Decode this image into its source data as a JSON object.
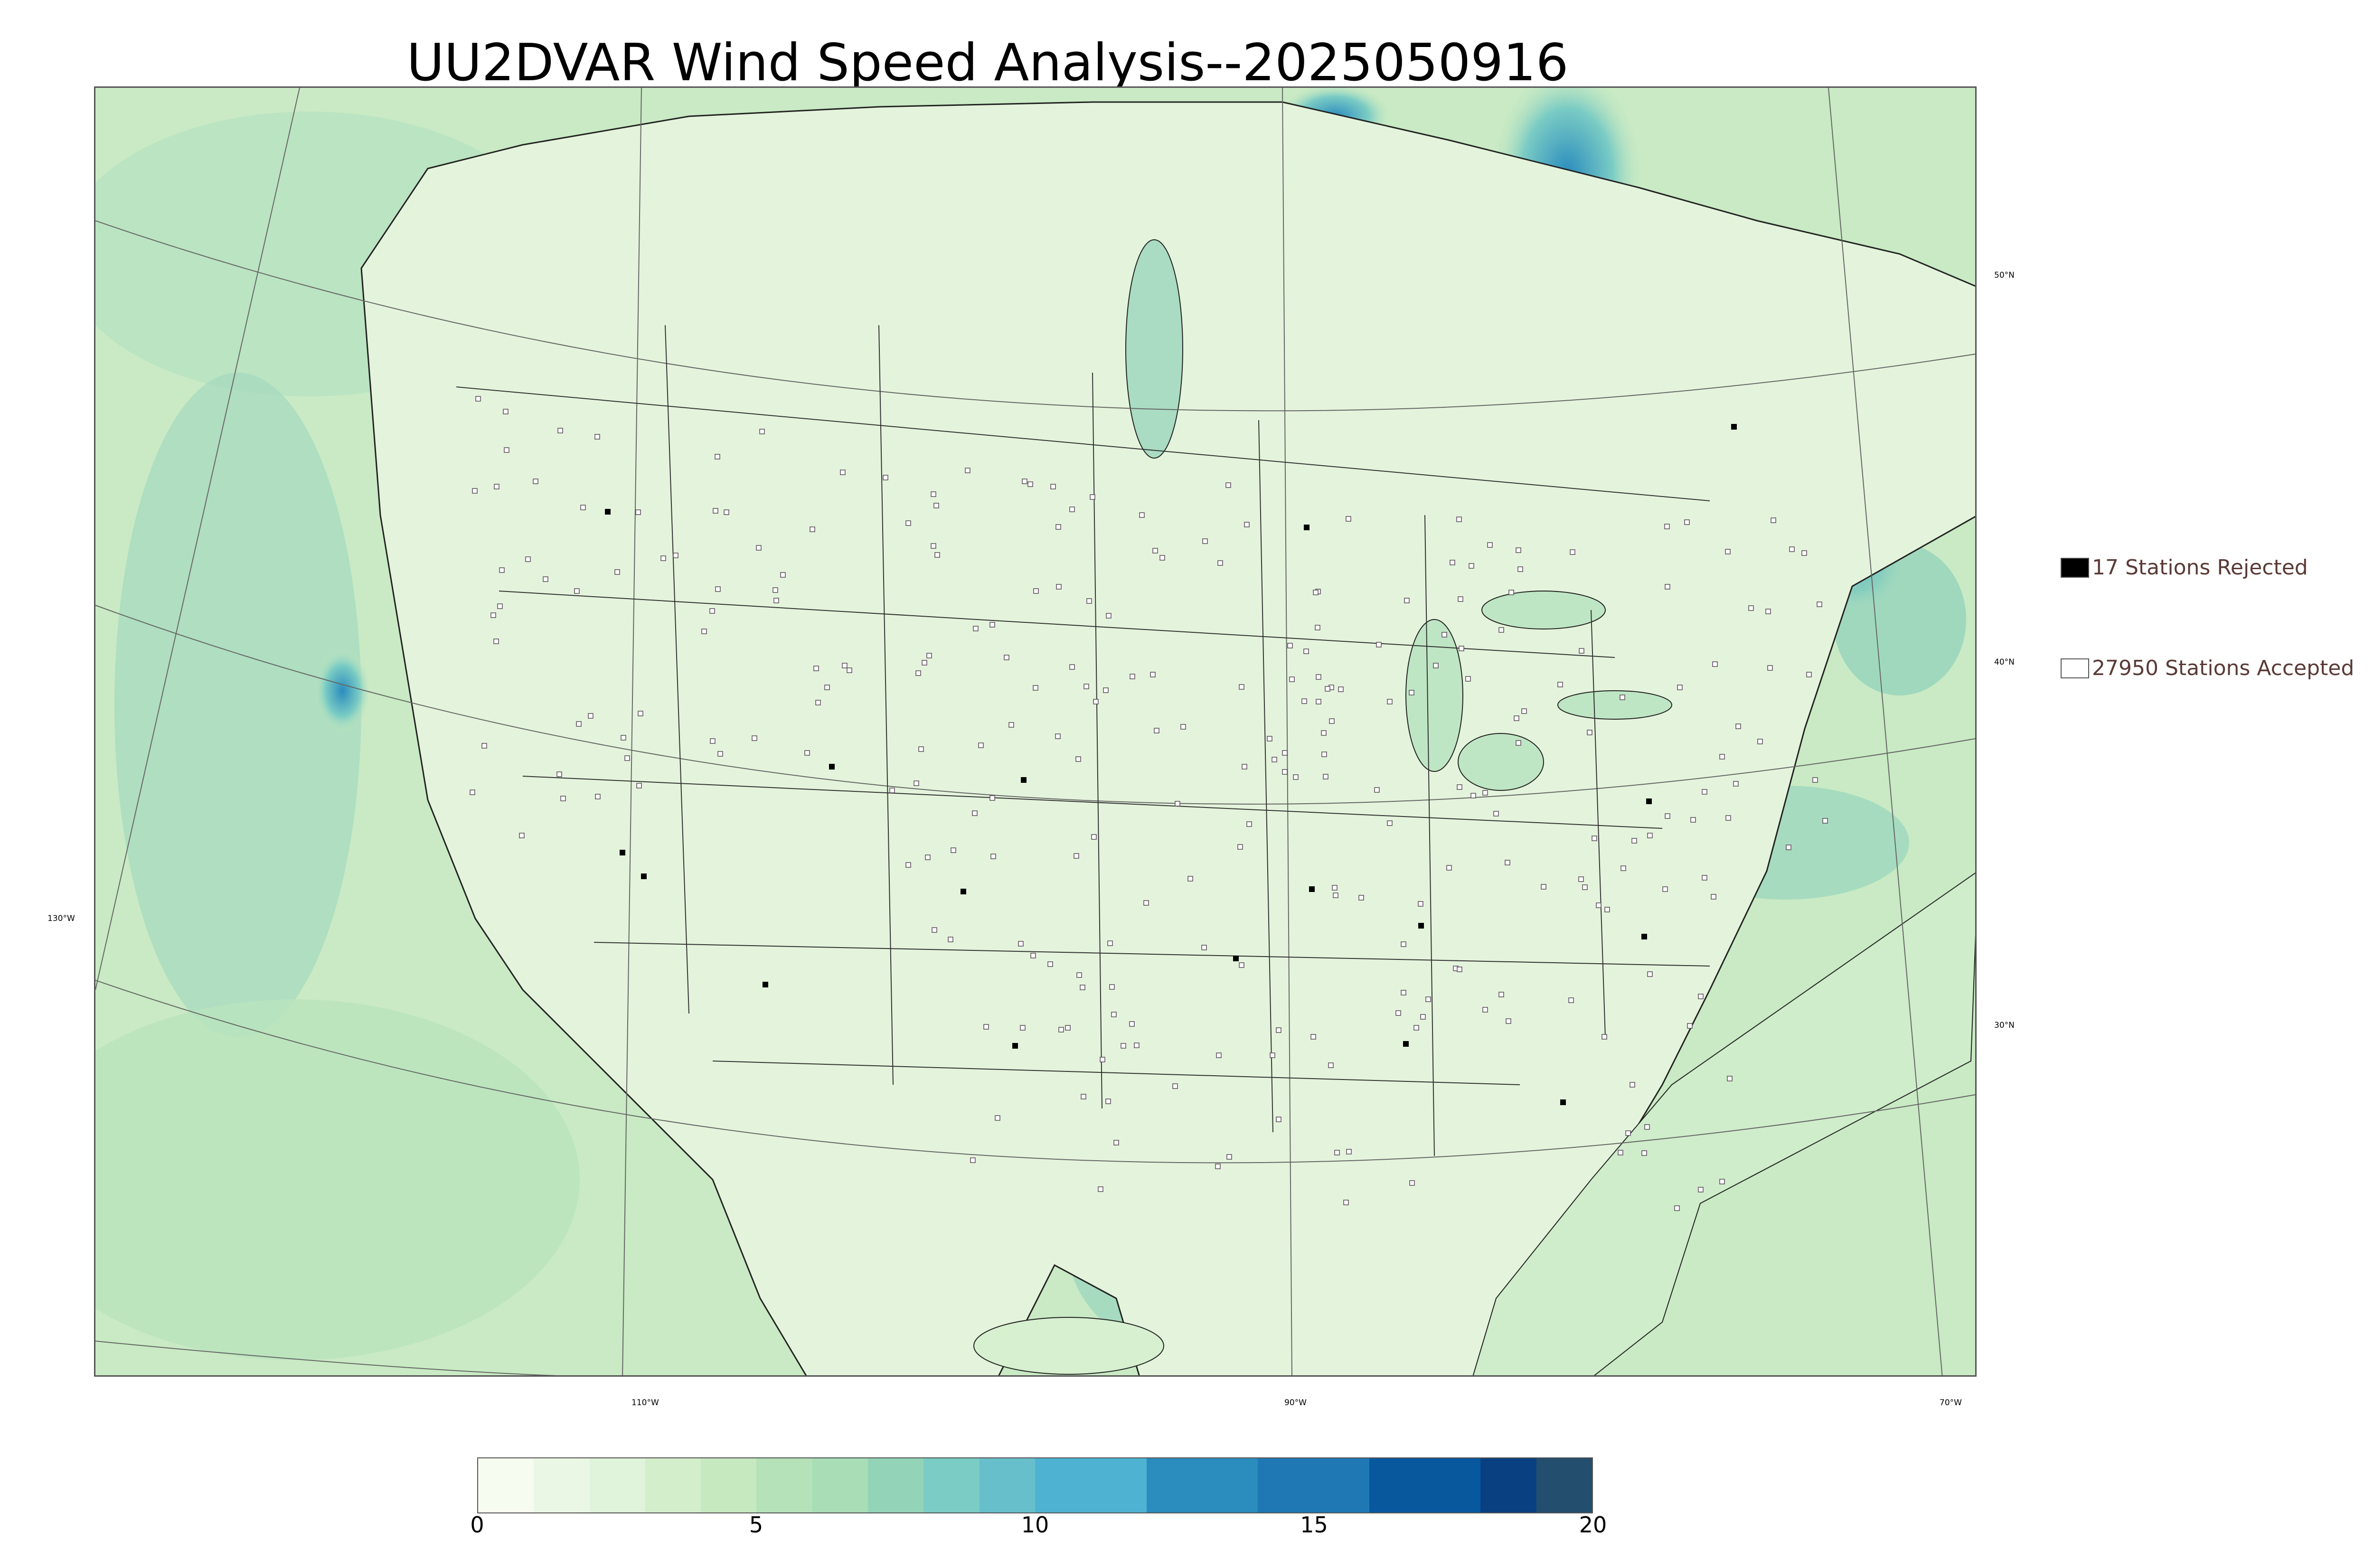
{
  "title": "UU2DVAR Wind Speed Analysis--2025050916",
  "map": {
    "projection": "lambert-conformal",
    "ocean_color": "#cdeccb",
    "land_color": "#e9f7e4",
    "lat_labels": [
      {
        "text": "50°N"
      },
      {
        "text": "40°N"
      },
      {
        "text": "30°N"
      },
      {
        "text": "130°W"
      }
    ],
    "lon_labels": [
      {
        "text": "110°W"
      },
      {
        "text": "90°W"
      },
      {
        "text": "70°W"
      }
    ]
  },
  "legend": {
    "rejected": {
      "label": "17 Stations Rejected",
      "count": 17,
      "color": "#000000"
    },
    "accepted": {
      "label": "27950 Stations Accepted",
      "count": 27950,
      "color": "#ffffff"
    }
  },
  "colorbar": {
    "min": 0,
    "max": 20,
    "ticks": [
      "0",
      "5",
      "10",
      "15",
      "20"
    ],
    "colors": [
      "#f7fcf0",
      "#eaf7e4",
      "#e0f3db",
      "#d3eecb",
      "#c7e9c0",
      "#b5e2b8",
      "#a8ddb5",
      "#93d4b9",
      "#7bccc4",
      "#67bfcb",
      "#4eb3d3",
      "#4eb3d3",
      "#2b8cbe",
      "#2b8cbe",
      "#1f78b4",
      "#1f78b4",
      "#08589e",
      "#08589e",
      "#084081",
      "#234e6e"
    ]
  }
}
